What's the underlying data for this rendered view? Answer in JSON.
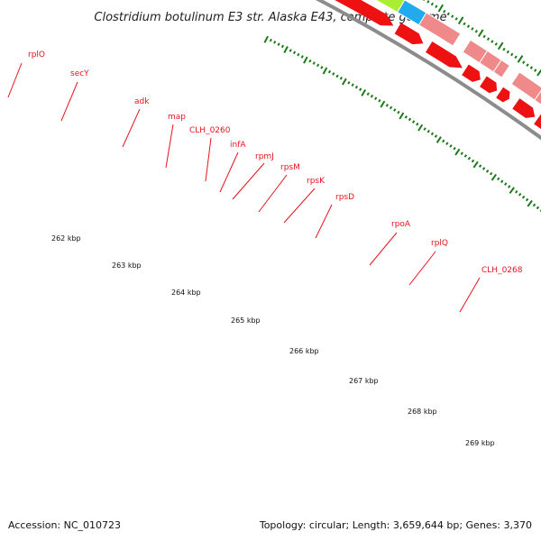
{
  "title": "Clostridium botulinum E3 str. Alaska E43, complete genome",
  "footer": {
    "accession": "Accession: NC_010723",
    "summary": "Topology: circular; Length: 3,659,644 bp; Genes: 3,370"
  },
  "colors": {
    "label": "#e8121c",
    "backbone": "#8c8c8c",
    "cds_arrow": "#ee1111",
    "tick": "#1a7a1a",
    "rplO": "#f08a8a",
    "secY": "#aaee33",
    "adk": "#22aaee",
    "map": "#f08a8a",
    "rpoA": "#f0900a",
    "CLH_0268": "#4b3a8c"
  },
  "gene_labels": [
    "rplO",
    "secY",
    "adk",
    "map",
    "CLH_0260",
    "infA",
    "rpmJ",
    "rpsM",
    "rpsK",
    "rpsD",
    "rpoA",
    "rplQ",
    "CLH_0268"
  ],
  "kbp_labels": [
    "262 kbp",
    "263 kbp",
    "264 kbp",
    "265 kbp",
    "266 kbp",
    "267 kbp",
    "268 kbp",
    "269 kbp"
  ]
}
